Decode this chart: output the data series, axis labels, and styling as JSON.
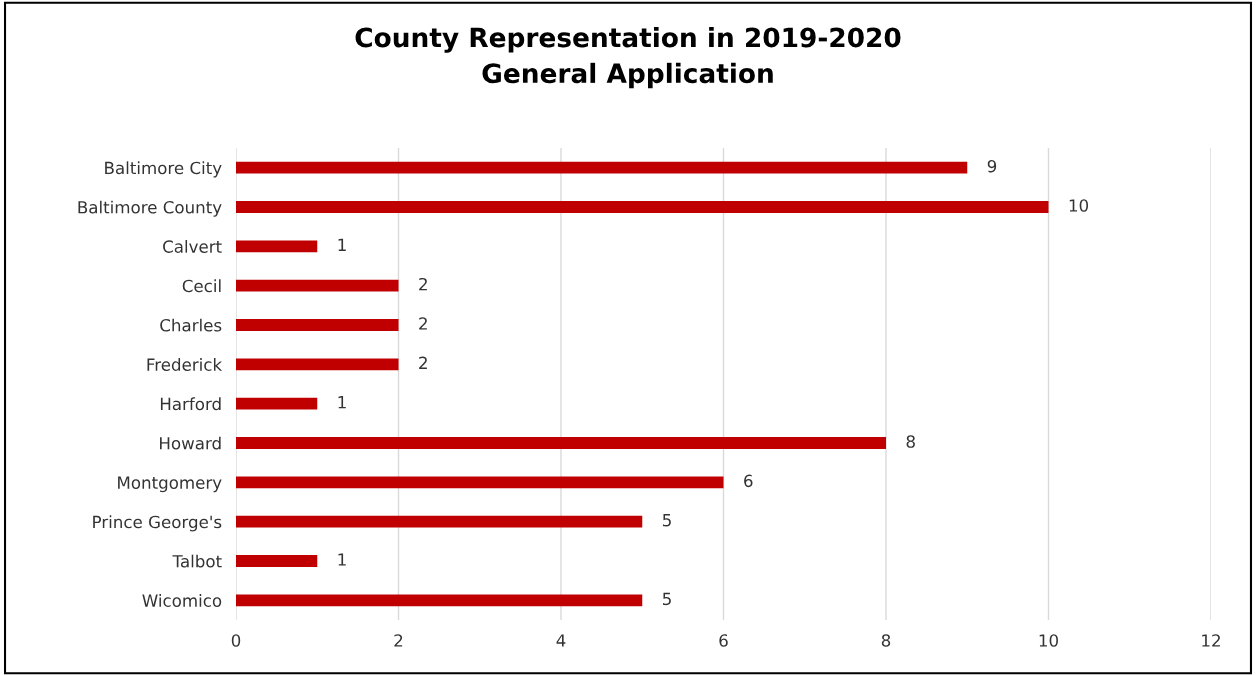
{
  "chart_data": {
    "type": "bar",
    "orientation": "horizontal",
    "title": "County Representation in 2019-2020\nGeneral Application",
    "categories": [
      "Baltimore City",
      "Baltimore County",
      "Calvert",
      "Cecil",
      "Charles",
      "Frederick",
      "Harford",
      "Howard",
      "Montgomery",
      "Prince George's",
      "Talbot",
      "Wicomico"
    ],
    "values": [
      9,
      10,
      1,
      2,
      2,
      2,
      1,
      8,
      6,
      5,
      1,
      5
    ],
    "color": "#c00000",
    "xlim": [
      0,
      12
    ],
    "xticks": [
      0,
      2,
      4,
      6,
      8,
      10,
      12
    ],
    "grid": "x",
    "data_labels": true,
    "legend": false
  }
}
